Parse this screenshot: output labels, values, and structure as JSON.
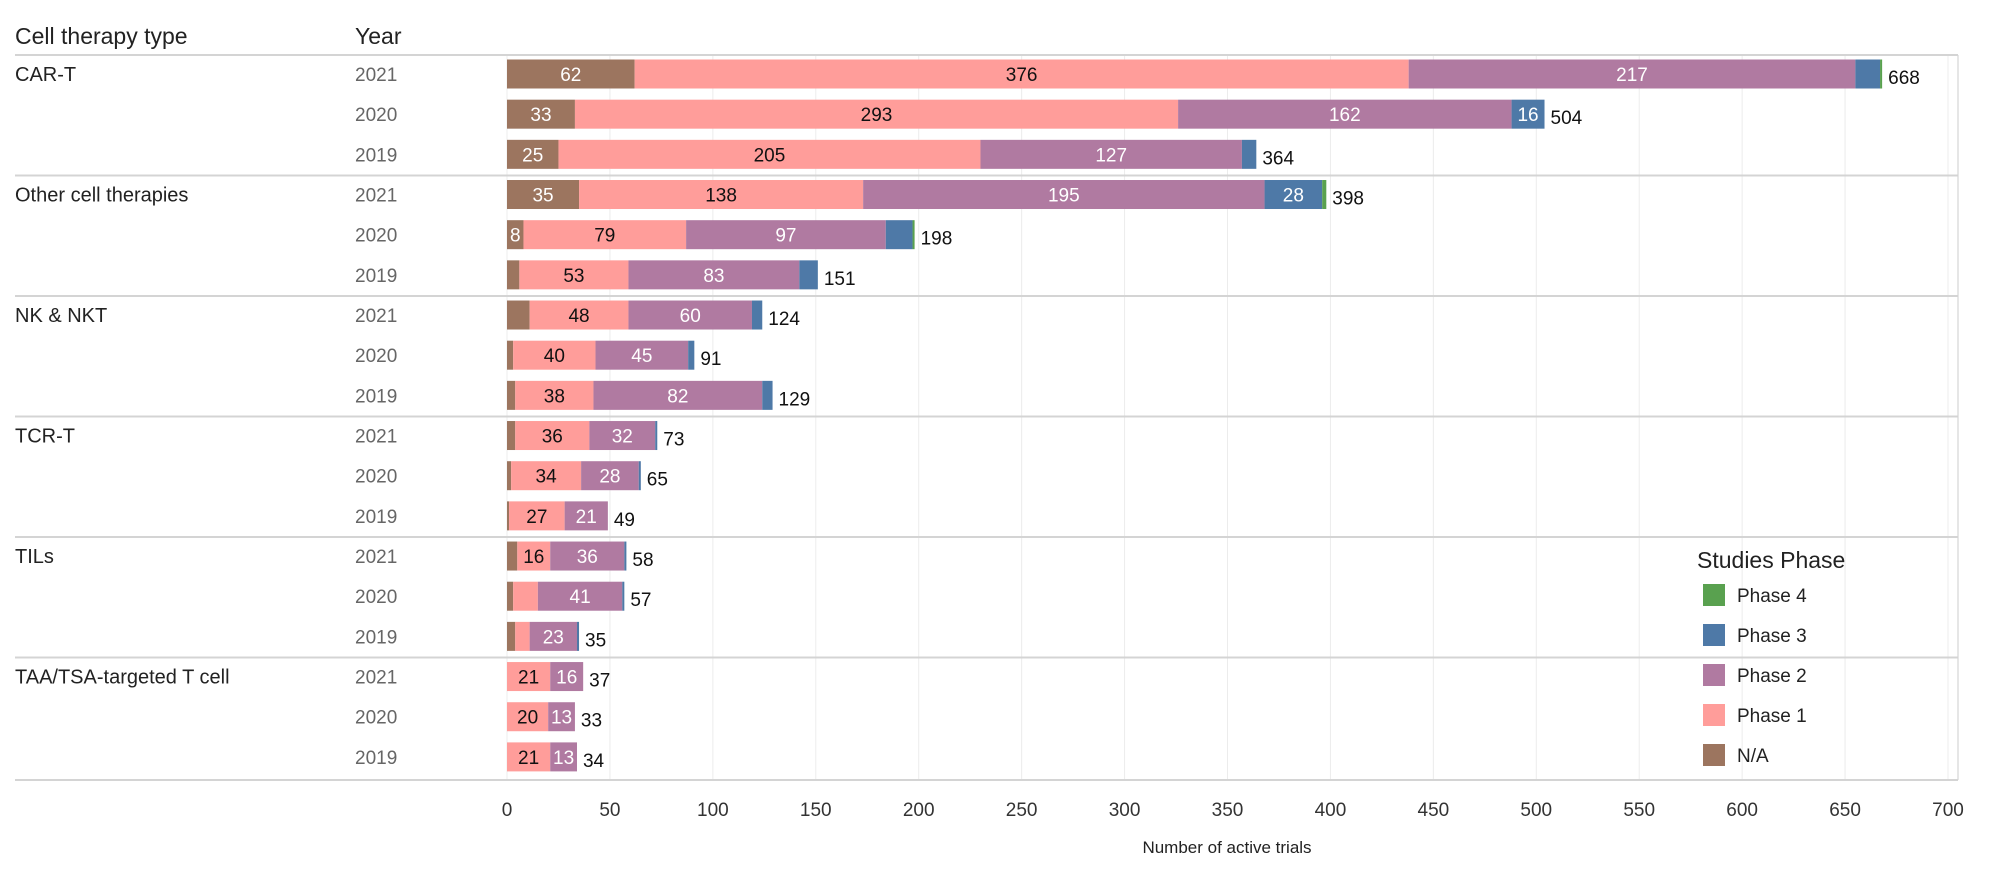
{
  "chart_data": {
    "type": "bar",
    "orientation": "horizontal",
    "stacked": true,
    "column_headers": {
      "type": "Cell therapy type",
      "year": "Year"
    },
    "xlabel": "Number of active trials",
    "xlim": [
      0,
      700
    ],
    "xticks": [
      "0",
      "50",
      "100",
      "150",
      "200",
      "250",
      "300",
      "350",
      "400",
      "450",
      "500",
      "550",
      "600",
      "650",
      "700"
    ],
    "grid": true,
    "legend": {
      "title": "Studies Phase",
      "placement": "bottom-right",
      "items": [
        {
          "name": "Phase 4",
          "color": "#59a14f"
        },
        {
          "name": "Phase 3",
          "color": "#4e79a7"
        },
        {
          "name": "Phase 2",
          "color": "#b07aa1"
        },
        {
          "name": "Phase 1",
          "color": "#ff9d9a"
        },
        {
          "name": "N/A",
          "color": "#9c755f"
        }
      ]
    },
    "series_order": [
      "N/A",
      "Phase 1",
      "Phase 2",
      "Phase 3",
      "Phase 4"
    ],
    "groups": [
      {
        "type": "CAR-T",
        "rows": [
          {
            "year": "2021",
            "values": [
              62,
              376,
              217,
              12,
              1
            ],
            "labels": [
              "62",
              "376",
              "217",
              "",
              ""
            ],
            "total": "668"
          },
          {
            "year": "2020",
            "values": [
              33,
              293,
              162,
              16,
              0
            ],
            "labels": [
              "33",
              "293",
              "162",
              "16",
              ""
            ],
            "total": "504"
          },
          {
            "year": "2019",
            "values": [
              25,
              205,
              127,
              7,
              0
            ],
            "labels": [
              "25",
              "205",
              "127",
              "",
              ""
            ],
            "total": "364"
          }
        ]
      },
      {
        "type": "Other cell therapies",
        "rows": [
          {
            "year": "2021",
            "values": [
              35,
              138,
              195,
              28,
              2
            ],
            "labels": [
              "35",
              "138",
              "195",
              "28",
              ""
            ],
            "total": "398"
          },
          {
            "year": "2020",
            "values": [
              8,
              79,
              97,
              13,
              1
            ],
            "labels": [
              "8",
              "79",
              "97",
              "",
              ""
            ],
            "total": "198"
          },
          {
            "year": "2019",
            "values": [
              6,
              53,
              83,
              9,
              0
            ],
            "labels": [
              "",
              "53",
              "83",
              "",
              ""
            ],
            "total": "151"
          }
        ]
      },
      {
        "type": "NK & NKT",
        "rows": [
          {
            "year": "2021",
            "values": [
              11,
              48,
              60,
              5,
              0
            ],
            "labels": [
              "",
              "48",
              "60",
              "",
              ""
            ],
            "total": "124"
          },
          {
            "year": "2020",
            "values": [
              3,
              40,
              45,
              3,
              0
            ],
            "labels": [
              "",
              "40",
              "45",
              "",
              ""
            ],
            "total": "91"
          },
          {
            "year": "2019",
            "values": [
              4,
              38,
              82,
              5,
              0
            ],
            "labels": [
              "",
              "38",
              "82",
              "",
              ""
            ],
            "total": "129"
          }
        ]
      },
      {
        "type": "TCR-T",
        "rows": [
          {
            "year": "2021",
            "values": [
              4,
              36,
              32,
              1,
              0
            ],
            "labels": [
              "",
              "36",
              "32",
              "",
              ""
            ],
            "total": "73"
          },
          {
            "year": "2020",
            "values": [
              2,
              34,
              28,
              1,
              0
            ],
            "labels": [
              "",
              "34",
              "28",
              "",
              ""
            ],
            "total": "65"
          },
          {
            "year": "2019",
            "values": [
              1,
              27,
              21,
              0,
              0
            ],
            "labels": [
              "",
              "27",
              "21",
              "",
              ""
            ],
            "total": "49"
          }
        ]
      },
      {
        "type": "TILs",
        "rows": [
          {
            "year": "2021",
            "values": [
              5,
              16,
              36,
              1,
              0
            ],
            "labels": [
              "",
              "16",
              "36",
              "",
              ""
            ],
            "total": "58"
          },
          {
            "year": "2020",
            "values": [
              3,
              12,
              41,
              1,
              0
            ],
            "labels": [
              "",
              "",
              "41",
              "",
              ""
            ],
            "total": "57"
          },
          {
            "year": "2019",
            "values": [
              4,
              7,
              23,
              1,
              0
            ],
            "labels": [
              "",
              "",
              "23",
              "",
              ""
            ],
            "total": "35"
          }
        ]
      },
      {
        "type": "TAA/TSA-targeted T cell",
        "rows": [
          {
            "year": "2021",
            "values": [
              0,
              21,
              16,
              0,
              0
            ],
            "labels": [
              "",
              "21",
              "16",
              "",
              ""
            ],
            "total": "37"
          },
          {
            "year": "2020",
            "values": [
              0,
              20,
              13,
              0,
              0
            ],
            "labels": [
              "",
              "20",
              "13",
              "",
              ""
            ],
            "total": "33"
          },
          {
            "year": "2019",
            "values": [
              0,
              21,
              13,
              0,
              0
            ],
            "labels": [
              "",
              "21",
              "13",
              "",
              ""
            ],
            "total": "34"
          }
        ]
      }
    ]
  }
}
